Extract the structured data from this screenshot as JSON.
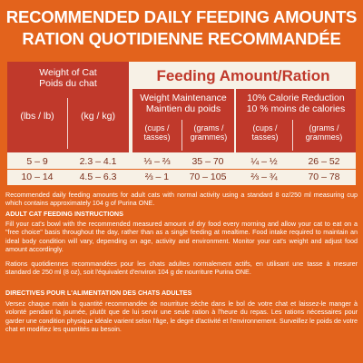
{
  "title_en": "RECOMMENDED DAILY FEEDING AMOUNTS",
  "title_fr": "RATION QUOTIDIENNE RECOMMANDÉE",
  "table": {
    "weight_label_en": "Weight of Cat",
    "weight_label_fr": "Poids du chat",
    "feeding_title": "Feeding Amount/Ration",
    "unit_lbs": "(lbs / lb)",
    "unit_kg": "(kg / kg)",
    "wm_title_en": "Weight Maintenance",
    "wm_title_fr": "Maintien du poids",
    "cr_title_en": "10% Calorie Reduction",
    "cr_title_fr": "10 % moins de calories",
    "cups_label": "(cups / tasses)",
    "grams_label": "(grams / grammes)",
    "rows": [
      {
        "lbs": "5 – 9",
        "kg": "2.3 – 4.1",
        "wm_cups": "⅓ – ⅔",
        "wm_grams": "35 – 70",
        "cr_cups": "¼ – ½",
        "cr_grams": "26 – 52"
      },
      {
        "lbs": "10 – 14",
        "kg": "4.5 – 6.3",
        "wm_cups": "⅔ – 1",
        "wm_grams": "70 – 105",
        "cr_cups": "⅔ – ¾",
        "cr_grams": "70 – 78"
      }
    ]
  },
  "note_en": "Recommended daily feeding amounts for adult cats with normal activity using a standard 8 oz/250 ml measuring cup which contains approximately 104 g of Purina ONE.",
  "instructions_en_heading": "ADULT CAT FEEDING INSTRUCTIONS",
  "instructions_en": "Fill your cat's bowl with the recommended measured amount of dry food every morning and allow your cat to eat on a \"free choice\" basis throughout the day, rather than as a single feeding at mealtime. Food intake required to maintain an ideal body condition will vary, depending on age, activity and environment. Monitor your cat's weight and adjust food amount accordingly.",
  "note_fr": "Rations quotidiennes recommandées pour les chats adultes normalement actifs, en utilisant une tasse à mesurer standard de 250 ml (8 oz), soit l'équivalent d'environ 104 g de nourriture Purina ONE.",
  "instructions_fr_heading": "DIRECTIVES POUR L'ALIMENTATION DES CHATS ADULTES",
  "instructions_fr": "Versez chaque matin la quantité recommandée de nourriture sèche dans le bol de votre chat et laissez-le manger à volonté pendant la journée, plutôt que de lui servir une seule ration à l'heure du repas. Les rations nécessaires pour garder une condition physique idéale varient selon l'âge, le degré d'activité et l'environnement. Surveillez le poids de votre chat et modifiez les quantités au besoin."
}
